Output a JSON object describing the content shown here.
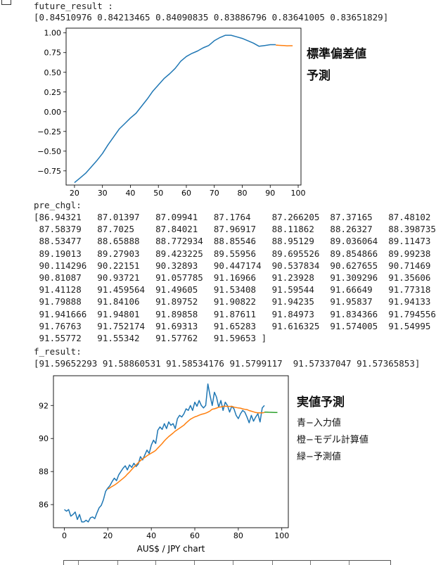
{
  "future_result_label": "future_result :",
  "future_result_text": "[0.84510976 0.84213465 0.84090835 0.83886796 0.83641005 0.83651829]",
  "chart1_side": {
    "title": "標準偏差値",
    "subtitle": "予測"
  },
  "pre_chgl_label": "pre_chgl:",
  "pre_chgl_lines": [
    "[86.94321   87.01397   87.09941   87.1764    87.266205  87.37165   87.48102",
    " 87.58379   87.7025    87.84021   87.96917   88.11862   88.26327   88.398735",
    " 88.53477   88.65888   88.772934  88.85546   88.95129   89.036064  89.11473",
    " 89.19013   89.27903   89.423225  89.55956   89.695526  89.854866  89.99238",
    " 90.114296  90.22151   90.32893   90.447174  90.537834  90.627655  90.71469",
    " 90.81087   90.93721   91.057785  91.16966   91.23928   91.309296  91.35606",
    " 91.41128   91.459564  91.49605   91.53408   91.59544   91.66649   91.77318",
    " 91.79888   91.84106   91.89752   91.90822   91.94235   91.95837   91.94133",
    " 91.941666  91.94801   91.89858   91.87611   91.84973   91.834366  91.794556",
    " 91.76763   91.752174  91.69313   91.65283   91.616325  91.574005  91.54995",
    " 91.55772   91.55342   91.57762   91.59653 ]"
  ],
  "f_result_label": "f_result:",
  "f_result_text": "[91.59652293 91.58860531 91.58534176 91.5799117  91.57337047 91.57365853]",
  "chart2_side": {
    "title": "実値予測",
    "notes": [
      "青−入力値",
      "橙−モデル計算値",
      "緑−予測値"
    ]
  },
  "chart2_caption": "AUS$ / JPY chart",
  "colors": {
    "blue": "#1f77b4",
    "orange": "#ff7f0e",
    "green": "#2ca02c"
  },
  "chart_data": [
    {
      "type": "line",
      "title": "",
      "xlabel": "",
      "ylabel": "",
      "xlim": [
        17,
        101
      ],
      "ylim": [
        -0.93,
        1.06
      ],
      "xticks": [
        20,
        30,
        40,
        50,
        60,
        70,
        80,
        90,
        100
      ],
      "yticks": [
        -0.75,
        -0.5,
        -0.25,
        0.0,
        0.25,
        0.5,
        0.75,
        1.0
      ],
      "ytick_labels": [
        "−0.75",
        "−0.50",
        "−0.25",
        "0.00",
        "0.25",
        "0.50",
        "0.75",
        "1.00"
      ],
      "grid": false,
      "series": [
        {
          "color": "blue",
          "x": [
            20,
            22,
            24,
            26,
            28,
            30,
            32,
            34,
            36,
            38,
            40,
            42,
            44,
            46,
            48,
            50,
            52,
            54,
            56,
            58,
            60,
            62,
            64,
            66,
            68,
            70,
            72,
            74,
            76,
            78,
            80,
            82,
            84,
            86,
            88,
            90,
            92
          ],
          "y": [
            -0.9,
            -0.84,
            -0.78,
            -0.7,
            -0.62,
            -0.53,
            -0.42,
            -0.32,
            -0.22,
            -0.15,
            -0.08,
            -0.02,
            0.07,
            0.16,
            0.26,
            0.34,
            0.42,
            0.48,
            0.55,
            0.64,
            0.7,
            0.74,
            0.77,
            0.81,
            0.84,
            0.9,
            0.94,
            0.97,
            0.97,
            0.95,
            0.93,
            0.9,
            0.87,
            0.83,
            0.84,
            0.85,
            0.85
          ]
        },
        {
          "color": "orange",
          "x": [
            92,
            93,
            94,
            95,
            96,
            97,
            98
          ],
          "y": [
            0.8451,
            0.8421,
            0.8409,
            0.8389,
            0.8364,
            0.8365,
            0.8365
          ]
        }
      ]
    },
    {
      "type": "line",
      "title": "",
      "xlabel": "AUS$ / JPY chart",
      "ylabel": "",
      "xlim": [
        -5,
        103
      ],
      "ylim": [
        84.6,
        93.8
      ],
      "xticks": [
        0,
        20,
        40,
        60,
        80,
        100
      ],
      "yticks": [
        86,
        88,
        90,
        92
      ],
      "grid": false,
      "series": [
        {
          "color": "blue",
          "x": [
            0,
            1,
            2,
            3,
            4,
            5,
            6,
            7,
            8,
            9,
            10,
            11,
            12,
            13,
            14,
            15,
            16,
            17,
            18,
            19,
            20,
            21,
            22,
            23,
            24,
            25,
            26,
            27,
            28,
            29,
            30,
            31,
            32,
            33,
            34,
            35,
            36,
            37,
            38,
            39,
            40,
            41,
            42,
            43,
            44,
            45,
            46,
            47,
            48,
            49,
            50,
            51,
            52,
            53,
            54,
            55,
            56,
            57,
            58,
            59,
            60,
            61,
            62,
            63,
            64,
            65,
            66,
            67,
            68,
            69,
            70,
            71,
            72,
            73,
            74,
            75,
            76,
            77,
            78,
            79,
            80,
            81,
            82,
            83,
            84,
            85,
            86,
            87,
            88,
            89,
            90,
            91,
            92
          ],
          "y": [
            85.7,
            85.6,
            85.7,
            85.3,
            85.4,
            85.55,
            85.1,
            85.4,
            84.95,
            84.95,
            85.05,
            84.95,
            85.2,
            85.25,
            85.15,
            85.5,
            85.8,
            85.95,
            86.3,
            86.8,
            87.0,
            87.15,
            87.4,
            87.6,
            87.45,
            87.8,
            88.0,
            88.2,
            88.35,
            88.1,
            88.4,
            88.25,
            88.5,
            88.3,
            88.45,
            88.9,
            88.7,
            89.0,
            89.3,
            89.1,
            89.6,
            89.9,
            89.7,
            90.5,
            90.7,
            90.55,
            90.9,
            90.6,
            91.0,
            90.8,
            90.9,
            90.6,
            91.2,
            91.4,
            91.3,
            91.5,
            91.8,
            91.7,
            92.0,
            91.7,
            92.2,
            91.95,
            92.3,
            92.0,
            91.85,
            92.0,
            93.3,
            92.6,
            92.0,
            92.8,
            92.5,
            91.9,
            92.3,
            91.7,
            92.2,
            92.0,
            91.6,
            91.95,
            91.8,
            91.4,
            91.2,
            91.5,
            91.7,
            91.6,
            91.3,
            90.95,
            91.4,
            91.05,
            91.3,
            91.5,
            91.0,
            91.85,
            92.0
          ]
        },
        {
          "color": "orange",
          "x": [
            20,
            21,
            22,
            23,
            24,
            25,
            26,
            27,
            28,
            29,
            30,
            31,
            32,
            33,
            34,
            35,
            36,
            37,
            38,
            39,
            40,
            41,
            42,
            43,
            44,
            45,
            46,
            47,
            48,
            49,
            50,
            51,
            52,
            53,
            54,
            55,
            56,
            57,
            58,
            59,
            60,
            61,
            62,
            63,
            64,
            65,
            66,
            67,
            68,
            69,
            70,
            71,
            72,
            73,
            74,
            75,
            76,
            77,
            78,
            79,
            80,
            81,
            82,
            83,
            84,
            85,
            86,
            87,
            88,
            89,
            90,
            91,
            92
          ],
          "y": [
            86.94321,
            87.01397,
            87.09941,
            87.1764,
            87.266205,
            87.37165,
            87.48102,
            87.58379,
            87.7025,
            87.84021,
            87.96917,
            88.11862,
            88.26327,
            88.398735,
            88.53477,
            88.65888,
            88.772934,
            88.85546,
            88.95129,
            89.036064,
            89.11473,
            89.19013,
            89.27903,
            89.423225,
            89.55956,
            89.695526,
            89.854866,
            89.99238,
            90.114296,
            90.22151,
            90.32893,
            90.447174,
            90.537834,
            90.627655,
            90.71469,
            90.81087,
            90.93721,
            91.057785,
            91.16966,
            91.23928,
            91.309296,
            91.35606,
            91.41128,
            91.459564,
            91.49605,
            91.53408,
            91.59544,
            91.66649,
            91.77318,
            91.79888,
            91.84106,
            91.89752,
            91.90822,
            91.94235,
            91.95837,
            91.94133,
            91.941666,
            91.94801,
            91.89858,
            91.87611,
            91.84973,
            91.834366,
            91.794556,
            91.76763,
            91.752174,
            91.69313,
            91.65283,
            91.616325,
            91.574005,
            91.54995,
            91.55772,
            91.55342,
            91.57762
          ]
        },
        {
          "color": "green",
          "x": [
            92,
            93,
            94,
            95,
            96,
            97,
            98
          ],
          "y": [
            91.59653,
            91.59652293,
            91.58860531,
            91.58534176,
            91.5799117,
            91.57337047,
            91.57365853
          ]
        }
      ]
    }
  ]
}
